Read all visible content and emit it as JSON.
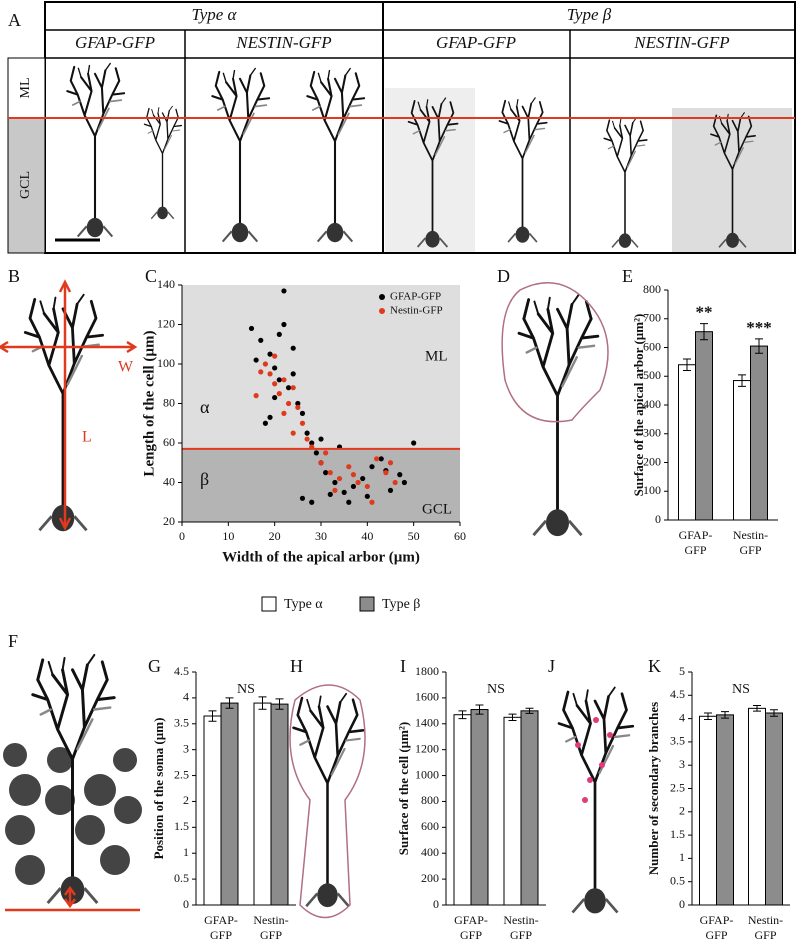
{
  "panel_labels": [
    "A",
    "B",
    "C",
    "D",
    "E",
    "F",
    "G",
    "H",
    "I",
    "J",
    "K"
  ],
  "panel_a": {
    "types": [
      "Type α",
      "Type β"
    ],
    "lines": [
      "GFAP-GFP",
      "NESTIN-GFP",
      "GFAP-GFP",
      "NESTIN-GFP"
    ],
    "layers": [
      "ML",
      "GCL"
    ]
  },
  "legend": [
    {
      "name": "Type α",
      "color": "#ffffff"
    },
    {
      "name": "Type β",
      "color": "#8c8c8c"
    }
  ],
  "chart_data": [
    {
      "type": "scatter",
      "xlabel": "Width of the apical arbor (µm)",
      "ylabel": "Length of the cell (µm)",
      "xlim": [
        0,
        60
      ],
      "ylim": [
        20,
        140
      ],
      "xticks": [
        0,
        10,
        20,
        30,
        40,
        50,
        60
      ],
      "yticks": [
        20,
        40,
        60,
        80,
        100,
        120,
        140
      ],
      "reference_line": {
        "y": 57,
        "color": "#e03a1e"
      },
      "region_labels": [
        "ML",
        "GCL"
      ],
      "type_labels": [
        "α",
        "β"
      ],
      "series": [
        {
          "name": "GFAP-GFP",
          "color": "#000000",
          "x": [
            22,
            15,
            17,
            19,
            20,
            21,
            23,
            24,
            25,
            26,
            18,
            16,
            27,
            28,
            22,
            20,
            24,
            19,
            29,
            30,
            31,
            33,
            35,
            37,
            39,
            41,
            43,
            45,
            47,
            50,
            26,
            28,
            32,
            36,
            40,
            44,
            48,
            21,
            30,
            34
          ],
          "y": [
            137,
            118,
            112,
            105,
            98,
            92,
            88,
            95,
            80,
            75,
            70,
            102,
            65,
            60,
            120,
            83,
            108,
            73,
            55,
            50,
            45,
            40,
            35,
            38,
            42,
            48,
            52,
            36,
            44,
            60,
            32,
            30,
            34,
            30,
            33,
            46,
            40,
            115,
            62,
            58
          ]
        },
        {
          "name": "Nestin-GFP",
          "color": "#e03a1e",
          "x": [
            18,
            19,
            20,
            21,
            22,
            23,
            24,
            17,
            16,
            25,
            26,
            20,
            22,
            30,
            32,
            34,
            36,
            38,
            40,
            42,
            44,
            46,
            28,
            33,
            37,
            41,
            45,
            24,
            27,
            31
          ],
          "y": [
            100,
            95,
            90,
            85,
            92,
            80,
            88,
            96,
            84,
            78,
            70,
            104,
            75,
            50,
            45,
            42,
            48,
            40,
            38,
            52,
            45,
            40,
            58,
            36,
            44,
            30,
            50,
            65,
            62,
            55
          ]
        }
      ]
    },
    {
      "type": "bar",
      "ylabel": "Surface of the apical arbor (µm²)",
      "categories": [
        [
          "GFAP-",
          "GFP"
        ],
        [
          "Nestin-",
          "GFP"
        ]
      ],
      "ylim": [
        0,
        800
      ],
      "yticks": [
        0,
        100,
        200,
        300,
        400,
        500,
        600,
        700,
        800
      ],
      "series": [
        {
          "color": "#ffffff",
          "values": [
            540,
            485
          ],
          "errors": [
            20,
            20
          ]
        },
        {
          "color": "#8c8c8c",
          "values": [
            655,
            605
          ],
          "errors": [
            28,
            25
          ],
          "significance": [
            "**",
            "***"
          ]
        }
      ]
    },
    {
      "type": "bar",
      "ylabel": "Position of the soma (µm)",
      "categories": [
        [
          "GFAP-",
          "GFP"
        ],
        [
          "Nestin-",
          "GFP"
        ]
      ],
      "ylim": [
        0,
        4.5
      ],
      "yticks": [
        0,
        0.5,
        1,
        1.5,
        2,
        2.5,
        3,
        3.5,
        4,
        4.5
      ],
      "annotation": "NS",
      "series": [
        {
          "color": "#ffffff",
          "values": [
            3.65,
            3.9
          ],
          "errors": [
            0.1,
            0.12
          ]
        },
        {
          "color": "#8c8c8c",
          "values": [
            3.9,
            3.88
          ],
          "errors": [
            0.1,
            0.1
          ]
        }
      ]
    },
    {
      "type": "bar",
      "ylabel": "Surface of the cell (µm²)",
      "categories": [
        [
          "GFAP-",
          "GFP"
        ],
        [
          "Nestin-",
          "GFP"
        ]
      ],
      "ylim": [
        0,
        1800
      ],
      "yticks": [
        0,
        200,
        400,
        600,
        800,
        1000,
        1200,
        1400,
        1600,
        1800
      ],
      "annotation": "NS",
      "series": [
        {
          "color": "#ffffff",
          "values": [
            1470,
            1450
          ],
          "errors": [
            30,
            25
          ]
        },
        {
          "color": "#8c8c8c",
          "values": [
            1510,
            1500
          ],
          "errors": [
            35,
            20
          ]
        }
      ]
    },
    {
      "type": "bar",
      "ylabel": "Number of secondary branches",
      "categories": [
        [
          "GFAP-",
          "GFP"
        ],
        [
          "Nestin-",
          "GFP"
        ]
      ],
      "ylim": [
        0,
        5
      ],
      "yticks": [
        0,
        0.5,
        1,
        1.5,
        2,
        2.5,
        3,
        3.5,
        4,
        4.5,
        5
      ],
      "annotation": "NS",
      "series": [
        {
          "color": "#ffffff",
          "values": [
            4.05,
            4.22
          ],
          "errors": [
            0.07,
            0.06
          ]
        },
        {
          "color": "#8c8c8c",
          "values": [
            4.08,
            4.12
          ],
          "errors": [
            0.07,
            0.07
          ]
        }
      ]
    }
  ]
}
